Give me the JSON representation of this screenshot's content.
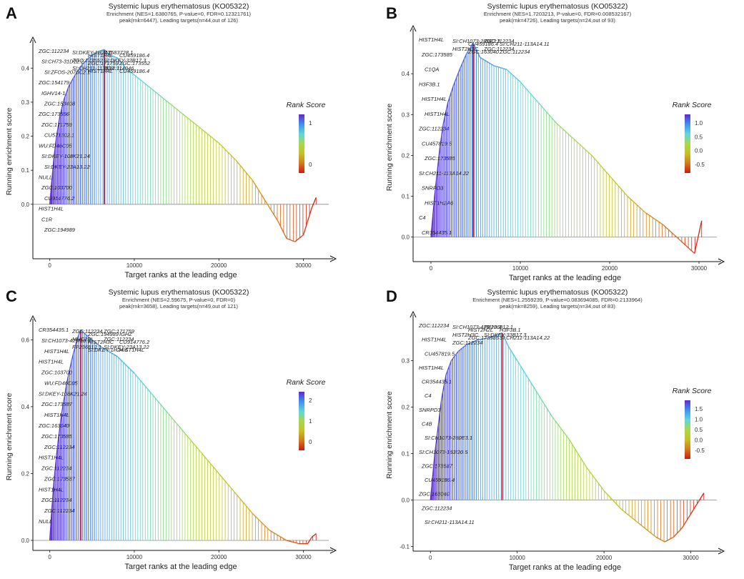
{
  "figure": {
    "panels": [
      {
        "id": "A",
        "title": "Systemic lupus erythematosus (KO05322)",
        "subtitle1": "Enrichment (NES=1.6380765, P-value=0, FDR=0.12321761)",
        "subtitle2": "peak(rnk=6447), Leading targets(n=44,out of 126)",
        "xlabel": "Target ranks at the leading edge",
        "ylabel": "Running enrichment score",
        "legend_title": "Rank Score",
        "chart_data": {
          "type": "line",
          "xlim": [
            -2000,
            33000
          ],
          "ylim": [
            -0.16,
            0.47
          ],
          "xticks": [
            0,
            10000,
            20000,
            30000
          ],
          "yticks": [
            0.0,
            0.1,
            0.2,
            0.3,
            0.4
          ],
          "peak_rank": 6447,
          "curve": [
            [
              0,
              0
            ],
            [
              200,
              0.06
            ],
            [
              500,
              0.14
            ],
            [
              800,
              0.2
            ],
            [
              1200,
              0.26
            ],
            [
              1700,
              0.31
            ],
            [
              2300,
              0.35
            ],
            [
              3000,
              0.38
            ],
            [
              3800,
              0.41
            ],
            [
              4600,
              0.43
            ],
            [
              5400,
              0.445
            ],
            [
              6447,
              0.455
            ],
            [
              7000,
              0.44
            ],
            [
              8000,
              0.43
            ],
            [
              9000,
              0.4
            ],
            [
              10000,
              0.38
            ],
            [
              11000,
              0.36
            ],
            [
              12000,
              0.34
            ],
            [
              14000,
              0.3
            ],
            [
              16000,
              0.26
            ],
            [
              18000,
              0.22
            ],
            [
              20000,
              0.18
            ],
            [
              22000,
              0.13
            ],
            [
              24000,
              0.07
            ],
            [
              25000,
              0.03
            ],
            [
              26000,
              -0.01
            ],
            [
              27000,
              -0.05
            ],
            [
              28000,
              -0.1
            ],
            [
              29000,
              -0.11
            ],
            [
              30000,
              -0.09
            ],
            [
              30500,
              -0.05
            ],
            [
              31000,
              -0.01
            ],
            [
              31500,
              0.02
            ]
          ],
          "legend_ticks": [
            "1",
            "0"
          ],
          "legend_colors": [
            "#5e2bd2",
            "#3f8ff2",
            "#5fd8d8",
            "#a8d84a",
            "#c7c227",
            "#d47b1c",
            "#d01818"
          ],
          "labels": [
            "ZGC:112234",
            "SI:CH73-31D12.2",
            "SI:ZFOS-2070C2.1",
            "ZGC:154179",
            "IGHV14-1",
            "ZGC:153408",
            "ZGC:173556",
            "ZGC:171759",
            "CU571302.1",
            "WU:FD46C05",
            "SI:DKEY-108K21.24",
            "SI:DKEY-23A13.22",
            "NULL",
            "ZGC:103700",
            "CU914776.2",
            "HIST1H4L",
            "C1R",
            "ZGC:194989",
            "SI:DKEY-1H24.6",
            "HIST1H4L",
            "CT583728.1",
            "CU459186.4",
            "ZGC:173552",
            "ZGC:171759",
            "SI:DKEY-33B17.3",
            "ZGC:173552",
            "SI:CH211-113A14.11",
            "HIST1H4L",
            "ZGC:114046",
            "CU459186.4"
          ]
        }
      },
      {
        "id": "B",
        "title": "Systemic lupus erythematosus (KO05322)",
        "subtitle1": "Enrichment (NES=1.7203213, P-value=0, FDR=0.008532167)",
        "subtitle2": "peak(rnk=4726), Leading targets(n=24,out of 93)",
        "xlabel": "Target ranks at the leading edge",
        "ylabel": "Running enrichment score",
        "legend_title": "Rank Score",
        "chart_data": {
          "type": "line",
          "xlim": [
            -2000,
            32000
          ],
          "ylim": [
            -0.06,
            0.5
          ],
          "xticks": [
            0,
            10000,
            20000,
            30000
          ],
          "yticks": [
            0.0,
            0.1,
            0.2,
            0.3,
            0.4
          ],
          "peak_rank": 4726,
          "curve": [
            [
              0,
              0
            ],
            [
              200,
              0.05
            ],
            [
              400,
              0.1
            ],
            [
              700,
              0.16
            ],
            [
              1000,
              0.22
            ],
            [
              1400,
              0.28
            ],
            [
              1900,
              0.33
            ],
            [
              2500,
              0.37
            ],
            [
              3200,
              0.41
            ],
            [
              4000,
              0.45
            ],
            [
              4726,
              0.475
            ],
            [
              5500,
              0.44
            ],
            [
              7000,
              0.42
            ],
            [
              8500,
              0.41
            ],
            [
              10000,
              0.38
            ],
            [
              12000,
              0.33
            ],
            [
              14000,
              0.28
            ],
            [
              16000,
              0.24
            ],
            [
              18000,
              0.2
            ],
            [
              20000,
              0.15
            ],
            [
              22000,
              0.1
            ],
            [
              24000,
              0.06
            ],
            [
              26000,
              0.03
            ],
            [
              28000,
              -0.01
            ],
            [
              29500,
              -0.04
            ],
            [
              30000,
              0.01
            ],
            [
              30300,
              0.04
            ]
          ],
          "legend_ticks": [
            "1.0",
            "0.5",
            "0.0",
            "-0.5"
          ],
          "legend_colors": [
            "#5e2bd2",
            "#3f8ff2",
            "#5fd8d8",
            "#a8d84a",
            "#c7c227",
            "#d47b1c",
            "#d01818"
          ],
          "labels": [
            "HIST1H4L",
            "ZGC:173585",
            "C1QA",
            "H3F3B.1",
            "HIST1H4L",
            "HIST1H4L",
            "ZGC:112234",
            "CU457819.5",
            "ZGC:173585",
            "SI:CH211-113A14.22",
            "SNRPD3",
            "HIST1H2A6",
            "C4",
            "CR354435.1",
            "SI:CH1073-280E3.1",
            "CU459186.4",
            "ZGC:112234",
            "SI:CH211-113A14.11",
            "HIST2H3C",
            "ZGC:163040",
            "ZGC:112234",
            "ZGC:112234"
          ]
        }
      },
      {
        "id": "C",
        "title": "Systemic lupus erythematosus (KO05322)",
        "subtitle1": "Enrichment (NES=2.59675, P-value=0, FDR=0)",
        "subtitle2": "peak(rnk=3658), Leading targets(n=49,out of 121)",
        "xlabel": "Target ranks at the leading edge",
        "ylabel": "Running enrichment score",
        "legend_title": "Rank Score",
        "chart_data": {
          "type": "line",
          "xlim": [
            -2000,
            33000
          ],
          "ylim": [
            -0.03,
            0.65
          ],
          "xticks": [
            0,
            10000,
            20000,
            30000
          ],
          "yticks": [
            0.0,
            0.2,
            0.4,
            0.6
          ],
          "peak_rank": 3658,
          "curve": [
            [
              0,
              0
            ],
            [
              200,
              0.08
            ],
            [
              500,
              0.18
            ],
            [
              900,
              0.28
            ],
            [
              1400,
              0.38
            ],
            [
              2000,
              0.47
            ],
            [
              2600,
              0.54
            ],
            [
              3200,
              0.6
            ],
            [
              3658,
              0.63
            ],
            [
              4500,
              0.61
            ],
            [
              6000,
              0.58
            ],
            [
              8000,
              0.55
            ],
            [
              10000,
              0.5
            ],
            [
              12000,
              0.44
            ],
            [
              14000,
              0.38
            ],
            [
              16000,
              0.32
            ],
            [
              18000,
              0.26
            ],
            [
              20000,
              0.2
            ],
            [
              22000,
              0.14
            ],
            [
              24000,
              0.08
            ],
            [
              26000,
              0.03
            ],
            [
              28000,
              0.0
            ],
            [
              29500,
              -0.01
            ],
            [
              30500,
              -0.01
            ],
            [
              31000,
              0.01
            ],
            [
              31500,
              0.02
            ]
          ],
          "legend_ticks": [
            "2",
            "1",
            "0"
          ],
          "legend_colors": [
            "#5e2bd2",
            "#3f8ff2",
            "#5fd8d8",
            "#a8d84a",
            "#c7c227",
            "#d47b1c",
            "#d01818"
          ],
          "labels": [
            "CR354435.1",
            "SI:CH1073-429I10.3",
            "HIST1H4L",
            "HIST1H4L",
            "ZGC:103700",
            "WU:FD46C05",
            "SI:DKEY-108K21.24",
            "ZGC:173587",
            "HIST1H4L",
            "ZGC:163040",
            "ZGC:173585",
            "ZGC:112234",
            "HIST1H4L",
            "ZGC:112234",
            "ZGC:173587",
            "HIST1H4L",
            "ZGC:112234",
            "ZGC:112234",
            "NULL",
            "ZGC:112234",
            "ZGC:194989",
            "ZGC:171759",
            "IGHZ",
            "MHC2BL",
            "HIST2H3C",
            "ZGC:112234",
            "CU914776.2",
            "FP236812.1",
            "SI:DKEY-1H24.6",
            "SI:DKEY-23A13.22",
            "HIST1H4L"
          ]
        }
      },
      {
        "id": "D",
        "title": "Systemic lupus erythematosus (KO05322)",
        "subtitle1": "Enrichment (NES=1.2559239, P-value=0.083694085, FDR=0.2133964)",
        "subtitle2": "peak(rnk=8259), Leading targets(n=34,out of 83)",
        "xlabel": "Target ranks at the leading edge",
        "ylabel": "Running enrichment score",
        "legend_title": "Rank Score",
        "chart_data": {
          "type": "line",
          "xlim": [
            -2000,
            33000
          ],
          "ylim": [
            -0.11,
            0.39
          ],
          "xticks": [
            0,
            10000,
            20000,
            30000
          ],
          "yticks": [
            -0.1,
            0.0,
            0.1,
            0.2,
            0.3
          ],
          "peak_rank": 8259,
          "curve": [
            [
              0,
              0
            ],
            [
              200,
              0.04
            ],
            [
              500,
              0.1
            ],
            [
              900,
              0.16
            ],
            [
              1300,
              0.22
            ],
            [
              1800,
              0.27
            ],
            [
              2400,
              0.3
            ],
            [
              3200,
              0.32
            ],
            [
              4200,
              0.335
            ],
            [
              5500,
              0.345
            ],
            [
              7000,
              0.35
            ],
            [
              8259,
              0.36
            ],
            [
              9000,
              0.33
            ],
            [
              10000,
              0.3
            ],
            [
              12000,
              0.24
            ],
            [
              14000,
              0.18
            ],
            [
              16000,
              0.13
            ],
            [
              18000,
              0.07
            ],
            [
              20000,
              0.02
            ],
            [
              22000,
              -0.02
            ],
            [
              24000,
              -0.05
            ],
            [
              26000,
              -0.08
            ],
            [
              27000,
              -0.09
            ],
            [
              28000,
              -0.08
            ],
            [
              29000,
              -0.06
            ],
            [
              30000,
              -0.03
            ],
            [
              31000,
              0.0
            ],
            [
              31500,
              0.015
            ]
          ],
          "legend_ticks": [
            "1.5",
            "1.0",
            "0.5",
            "0.0",
            "-0.5"
          ],
          "legend_colors": [
            "#5e2bd2",
            "#3f8ff2",
            "#5fd8d8",
            "#a8d84a",
            "#c7c227",
            "#d47b1c",
            "#d01818"
          ],
          "labels": [
            "ZGC:112234",
            "HIST1H4L",
            "CU457819.5",
            "HIST1H4L",
            "CR354435.1",
            "C4",
            "SNRPD3",
            "C4B",
            "SI:CH1073-280E3.1",
            "SI:CH1073-153I20.5",
            "ZGC:173587",
            "CU459186.4",
            "ZGC:163040",
            "ZGC:112234",
            "SI:CH211-113A14.11",
            "SI:CH1073-429I10.3",
            "HIST2H2L",
            "FP236812.1",
            "H3F3B.1",
            "HIST2H3C",
            "ZGC:173585",
            "SI:DKEY-33B17.3",
            "SI:CH211-113A14.22",
            "ZGC:112234"
          ]
        }
      }
    ]
  }
}
